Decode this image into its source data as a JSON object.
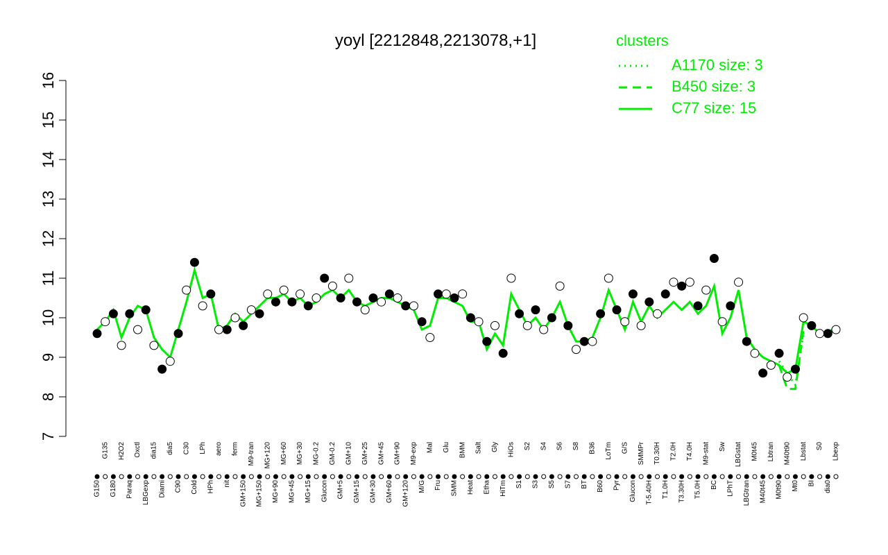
{
  "chart_data": {
    "type": "line",
    "title": "yoyl [2212848,2213078,+1]",
    "legend_title": "clusters",
    "legend_position": "top-right",
    "ylim": [
      7,
      16
    ],
    "yticks": [
      7,
      8,
      9,
      10,
      11,
      12,
      13,
      14,
      15,
      16
    ],
    "categories": [
      "G150",
      "G135",
      "G180",
      "H2O2",
      "Paraq",
      "Oxctl",
      "LBGexp",
      "dia15",
      "Diami",
      "dia5",
      "C90",
      "C30",
      "Cold",
      "LPh",
      "HPh",
      "aero",
      "nit",
      "ferm",
      "GM+150",
      "M9-tran",
      "MG+150",
      "MG+120",
      "MG+90",
      "MG+60",
      "MG+45",
      "MG+30",
      "MG+15",
      "MG-0.2",
      "Glucon",
      "GM-0.2",
      "GM+5",
      "GM+10",
      "GM+15",
      "GM+25",
      "GM+30",
      "GM+45",
      "GM+60",
      "GM+90",
      "GM+120",
      "M9-exp",
      "M/G",
      "Mal",
      "Fru",
      "Glu",
      "SMM",
      "BMM",
      "Heat",
      "Salt",
      "Etha",
      "Gly",
      "HiTm",
      "HiOs",
      "S1",
      "S2",
      "S3",
      "S4",
      "S5",
      "S6",
      "S7",
      "S8",
      "BT",
      "B36",
      "B60",
      "LoTm",
      "Pyr",
      "G/S",
      "Glucon",
      "SMMPr",
      "T-5.40H",
      "T0.30H",
      "T1.0H",
      "T2.0H",
      "T3.30H",
      "T4.0H",
      "T5.0H",
      "M9-stat",
      "BC",
      "Sw",
      "LPhT",
      "LBGstat",
      "LBGtran",
      "M0t45",
      "M40t45",
      "Lbtran",
      "M0t90",
      "M40t90",
      "Mt0",
      "Lbstat",
      "BI",
      "S0",
      "dia0",
      "Lbexp"
    ],
    "points": [
      9.6,
      9.9,
      10.1,
      9.3,
      10.1,
      9.7,
      10.2,
      9.3,
      8.7,
      8.9,
      9.6,
      10.7,
      11.4,
      10.3,
      10.6,
      9.7,
      9.7,
      10.0,
      9.8,
      10.2,
      10.1,
      10.6,
      10.4,
      10.7,
      10.4,
      10.6,
      10.3,
      10.5,
      11.0,
      10.8,
      10.5,
      11.0,
      10.4,
      10.2,
      10.5,
      10.4,
      10.6,
      10.5,
      10.3,
      10.3,
      9.9,
      9.5,
      10.6,
      10.6,
      10.5,
      10.6,
      10.0,
      9.9,
      9.4,
      9.8,
      9.1,
      11.0,
      10.1,
      9.8,
      10.2,
      9.7,
      10.0,
      10.8,
      9.8,
      9.2,
      9.4,
      9.4,
      10.1,
      11.0,
      10.2,
      9.9,
      10.6,
      9.8,
      10.4,
      10.1,
      10.6,
      10.9,
      10.8,
      10.9,
      10.3,
      10.7,
      11.5,
      9.9,
      10.3,
      10.9,
      9.4,
      9.1,
      8.6,
      8.8,
      9.1,
      8.5,
      8.7,
      10.0,
      9.8,
      9.6,
      9.6,
      9.7
    ],
    "series": [
      {
        "name": "A1170 size: 3",
        "color": "#00ee00",
        "style": "dotted",
        "values": [
          null,
          null,
          null,
          null,
          null,
          null,
          null,
          null,
          null,
          null,
          null,
          null,
          null,
          null,
          null,
          null,
          null,
          null,
          null,
          null,
          null,
          null,
          null,
          null,
          null,
          null,
          null,
          null,
          null,
          null,
          null,
          null,
          null,
          null,
          null,
          null,
          null,
          null,
          null,
          null,
          null,
          null,
          null,
          null,
          null,
          null,
          null,
          null,
          null,
          null,
          null,
          null,
          null,
          null,
          null,
          null,
          null,
          null,
          null,
          null,
          null,
          null,
          null,
          null,
          null,
          null,
          null,
          null,
          null,
          null,
          null,
          null,
          null,
          null,
          null,
          null,
          null,
          null,
          null,
          null,
          null,
          null,
          null,
          null,
          8.9,
          8.6,
          8.3,
          9.6,
          null,
          null,
          null,
          null
        ]
      },
      {
        "name": "B450 size: 3",
        "color": "#00ee00",
        "style": "dashed",
        "values": [
          null,
          null,
          null,
          null,
          null,
          null,
          null,
          null,
          null,
          null,
          null,
          null,
          null,
          null,
          null,
          null,
          null,
          null,
          null,
          null,
          null,
          null,
          null,
          null,
          null,
          null,
          null,
          null,
          null,
          null,
          null,
          null,
          null,
          null,
          null,
          null,
          null,
          null,
          null,
          null,
          null,
          null,
          null,
          null,
          null,
          null,
          null,
          null,
          null,
          null,
          null,
          null,
          null,
          null,
          null,
          null,
          null,
          null,
          null,
          null,
          null,
          null,
          null,
          null,
          null,
          null,
          null,
          null,
          null,
          null,
          null,
          null,
          null,
          null,
          null,
          null,
          null,
          null,
          null,
          null,
          null,
          null,
          null,
          null,
          8.8,
          8.2,
          8.2,
          9.7,
          null,
          null,
          null,
          null
        ]
      },
      {
        "name": "C77 size: 15",
        "color": "#00ee00",
        "style": "solid",
        "values": [
          9.7,
          9.9,
          10.2,
          9.5,
          10.0,
          10.3,
          10.2,
          9.5,
          9.2,
          9.0,
          9.7,
          10.4,
          11.2,
          10.5,
          10.6,
          9.7,
          9.8,
          10.1,
          9.9,
          10.1,
          10.3,
          10.5,
          10.5,
          10.6,
          10.4,
          10.5,
          10.3,
          10.4,
          10.6,
          10.7,
          10.5,
          10.7,
          10.4,
          10.3,
          10.4,
          10.5,
          10.5,
          10.4,
          10.3,
          10.2,
          9.7,
          9.8,
          10.5,
          10.5,
          10.4,
          10.3,
          9.9,
          9.9,
          9.2,
          9.6,
          9.3,
          10.6,
          10.2,
          9.8,
          10.0,
          9.7,
          10.0,
          10.4,
          9.8,
          9.4,
          9.4,
          9.5,
          10.0,
          10.7,
          10.2,
          9.7,
          10.4,
          9.9,
          10.3,
          10.0,
          10.2,
          10.4,
          10.2,
          10.4,
          10.1,
          10.3,
          10.8,
          9.6,
          10.0,
          10.7,
          9.5,
          9.2,
          9.0,
          8.9,
          8.8,
          8.6,
          8.7,
          9.9,
          9.8,
          9.6,
          9.6,
          9.8
        ]
      }
    ]
  }
}
